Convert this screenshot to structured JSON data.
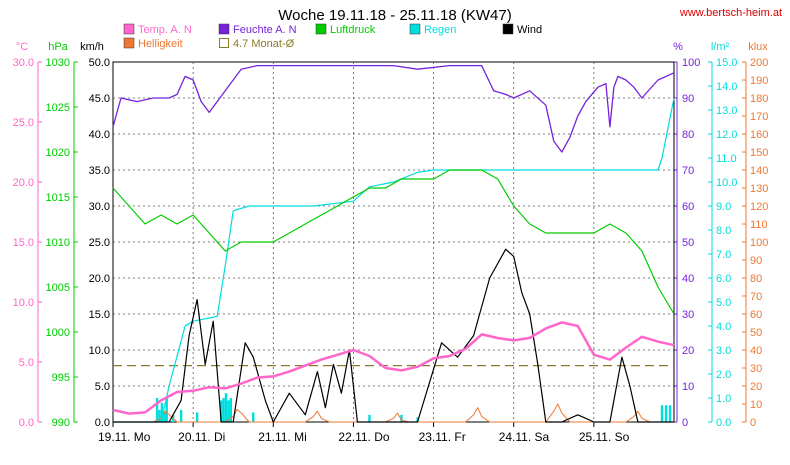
{
  "header": {
    "title": "Woche 19.11.18 - 25.11.18 (KW47)",
    "website": "www.bertsch-heim.at"
  },
  "colors": {
    "temp": "#ff66cc",
    "humidity": "#7722dd",
    "pressure": "#00cc00",
    "rain": "#00dddd",
    "wind": "#000000",
    "brightness": "#ee7733",
    "monthly_avg": "#8a7a2a",
    "grid": "#555555",
    "website": "#dd0000"
  },
  "legend": [
    {
      "key": "temp",
      "label": "Temp. A. N",
      "style": "fill"
    },
    {
      "key": "humidity",
      "label": "Feuchte A. N",
      "style": "fill"
    },
    {
      "key": "pressure",
      "label": "Luftdruck",
      "style": "fill"
    },
    {
      "key": "rain",
      "label": "Regen",
      "style": "fill"
    },
    {
      "key": "wind",
      "label": "Wind",
      "style": "fill"
    },
    {
      "key": "brightness",
      "label": "Helligkeit",
      "style": "fill"
    },
    {
      "key": "monthly_avg",
      "label": "4.7 Monat-Ø",
      "style": "outline"
    }
  ],
  "axes": {
    "temp": {
      "unit": "°C",
      "ticks": [
        "0.0",
        "5.0",
        "10.0",
        "15.0",
        "20.0",
        "25.0",
        "30.0"
      ]
    },
    "pressure": {
      "unit": "hPa",
      "ticks": [
        "990",
        "995",
        "1000",
        "1005",
        "1010",
        "1015",
        "1020",
        "1025",
        "1030"
      ]
    },
    "wind": {
      "unit": "km/h",
      "ticks": [
        "0.0",
        "5.0",
        "10.0",
        "15.0",
        "20.0",
        "25.0",
        "30.0",
        "35.0",
        "40.0",
        "45.0",
        "50.0"
      ]
    },
    "humidity": {
      "unit": "%",
      "ticks": [
        "0",
        "10",
        "20",
        "30",
        "40",
        "50",
        "60",
        "70",
        "80",
        "90",
        "100"
      ]
    },
    "rain": {
      "unit": "l/m²",
      "ticks": [
        "0.0",
        "1.0",
        "2.0",
        "3.0",
        "4.0",
        "5.0",
        "6.0",
        "7.0",
        "8.0",
        "9.0",
        "10.0",
        "11.0",
        "12.0",
        "13.0",
        "14.0",
        "15.0"
      ]
    },
    "brightness": {
      "unit": "klux",
      "ticks": [
        "0",
        "10",
        "20",
        "30",
        "40",
        "50",
        "60",
        "70",
        "80",
        "90",
        "100",
        "110",
        "120",
        "130",
        "140",
        "150",
        "160",
        "170",
        "180",
        "190",
        "200"
      ]
    },
    "days": [
      "19.11. Mo",
      "20.11. Di",
      "21.11. Mi",
      "22.11. Do",
      "23.11. Fr",
      "24.11. Sa",
      "25.11. So"
    ]
  },
  "chart_data": {
    "type": "line",
    "title": "Woche 19.11.18 - 25.11.18 (KW47)",
    "x_unit": "days since 19.11.18 00:00",
    "xlim": [
      0,
      7
    ],
    "grid": true,
    "legend_position": "top",
    "monthly_avg_temp": 4.7,
    "series": [
      {
        "name": "Temp. A. N",
        "key": "temp",
        "unit": "°C",
        "ylim": [
          0,
          30
        ],
        "points": [
          [
            0,
            1.0
          ],
          [
            0.2,
            0.7
          ],
          [
            0.4,
            0.8
          ],
          [
            0.6,
            1.8
          ],
          [
            0.8,
            2.5
          ],
          [
            1.0,
            2.6
          ],
          [
            1.2,
            2.9
          ],
          [
            1.4,
            2.8
          ],
          [
            1.6,
            3.2
          ],
          [
            1.8,
            3.7
          ],
          [
            2.0,
            3.8
          ],
          [
            2.2,
            4.2
          ],
          [
            2.4,
            4.7
          ],
          [
            2.6,
            5.2
          ],
          [
            2.8,
            5.6
          ],
          [
            3.0,
            6.0
          ],
          [
            3.2,
            5.5
          ],
          [
            3.4,
            4.5
          ],
          [
            3.6,
            4.3
          ],
          [
            3.8,
            4.6
          ],
          [
            4.0,
            5.3
          ],
          [
            4.2,
            5.5
          ],
          [
            4.4,
            6.1
          ],
          [
            4.6,
            7.3
          ],
          [
            4.8,
            7.0
          ],
          [
            5.0,
            6.8
          ],
          [
            5.2,
            7.0
          ],
          [
            5.4,
            7.8
          ],
          [
            5.6,
            8.3
          ],
          [
            5.8,
            8.0
          ],
          [
            6.0,
            5.6
          ],
          [
            6.2,
            5.2
          ],
          [
            6.4,
            6.2
          ],
          [
            6.6,
            7.1
          ],
          [
            6.8,
            6.7
          ],
          [
            7.0,
            6.4
          ]
        ]
      },
      {
        "name": "Feuchte A. N",
        "key": "humidity",
        "unit": "%",
        "ylim": [
          0,
          100
        ],
        "points": [
          [
            0,
            82
          ],
          [
            0.1,
            90
          ],
          [
            0.3,
            89
          ],
          [
            0.5,
            90
          ],
          [
            0.7,
            90
          ],
          [
            0.8,
            91
          ],
          [
            0.9,
            96
          ],
          [
            1.0,
            95
          ],
          [
            1.1,
            89
          ],
          [
            1.2,
            86
          ],
          [
            1.4,
            92
          ],
          [
            1.6,
            98
          ],
          [
            1.8,
            99
          ],
          [
            2.0,
            99
          ],
          [
            2.5,
            99
          ],
          [
            3.0,
            99
          ],
          [
            3.5,
            99
          ],
          [
            3.8,
            98
          ],
          [
            4.2,
            99
          ],
          [
            4.6,
            99
          ],
          [
            4.75,
            92
          ],
          [
            4.9,
            91
          ],
          [
            5.0,
            90
          ],
          [
            5.2,
            92
          ],
          [
            5.4,
            88
          ],
          [
            5.5,
            78
          ],
          [
            5.6,
            75
          ],
          [
            5.7,
            79
          ],
          [
            5.8,
            85
          ],
          [
            5.9,
            89
          ],
          [
            6.05,
            93
          ],
          [
            6.15,
            94
          ],
          [
            6.2,
            82
          ],
          [
            6.25,
            93
          ],
          [
            6.3,
            96
          ],
          [
            6.4,
            95
          ],
          [
            6.5,
            93
          ],
          [
            6.6,
            90
          ],
          [
            6.8,
            95
          ],
          [
            7.0,
            97
          ]
        ]
      },
      {
        "name": "Luftdruck",
        "key": "pressure",
        "unit": "hPa",
        "ylim": [
          990,
          1030
        ],
        "points": [
          [
            0,
            1016
          ],
          [
            0.2,
            1014
          ],
          [
            0.4,
            1012
          ],
          [
            0.6,
            1013
          ],
          [
            0.8,
            1012
          ],
          [
            1.0,
            1013
          ],
          [
            1.2,
            1011
          ],
          [
            1.4,
            1009
          ],
          [
            1.6,
            1010
          ],
          [
            1.8,
            1010
          ],
          [
            2.0,
            1010
          ],
          [
            2.2,
            1011
          ],
          [
            2.4,
            1012
          ],
          [
            2.6,
            1013
          ],
          [
            2.8,
            1014
          ],
          [
            3.0,
            1015
          ],
          [
            3.2,
            1016
          ],
          [
            3.4,
            1016
          ],
          [
            3.6,
            1017
          ],
          [
            3.8,
            1017
          ],
          [
            4.0,
            1017
          ],
          [
            4.2,
            1018
          ],
          [
            4.4,
            1018
          ],
          [
            4.6,
            1018
          ],
          [
            4.8,
            1017
          ],
          [
            5.0,
            1014
          ],
          [
            5.2,
            1012
          ],
          [
            5.4,
            1011
          ],
          [
            5.6,
            1011
          ],
          [
            5.8,
            1011
          ],
          [
            6.0,
            1011
          ],
          [
            6.2,
            1012
          ],
          [
            6.4,
            1011
          ],
          [
            6.6,
            1009
          ],
          [
            6.8,
            1005
          ],
          [
            7.0,
            1002
          ]
        ]
      },
      {
        "name": "Regen",
        "key": "rain",
        "unit": "l/m²",
        "ylim": [
          0,
          15
        ],
        "points": [
          [
            0,
            0
          ],
          [
            0.6,
            0
          ],
          [
            0.7,
            1.5
          ],
          [
            0.9,
            4.0
          ],
          [
            1.0,
            4.2
          ],
          [
            1.3,
            4.4
          ],
          [
            1.4,
            6.5
          ],
          [
            1.5,
            8.8
          ],
          [
            1.7,
            9.0
          ],
          [
            2.0,
            9.0
          ],
          [
            2.5,
            9.0
          ],
          [
            3.0,
            9.2
          ],
          [
            3.2,
            9.8
          ],
          [
            3.5,
            10.0
          ],
          [
            3.8,
            10.4
          ],
          [
            4.0,
            10.5
          ],
          [
            4.5,
            10.5
          ],
          [
            5.0,
            10.5
          ],
          [
            5.5,
            10.5
          ],
          [
            6.0,
            10.5
          ],
          [
            6.8,
            10.5
          ],
          [
            6.85,
            11.0
          ],
          [
            7.0,
            13.5
          ]
        ]
      },
      {
        "name": "Wind",
        "key": "wind",
        "unit": "km/h",
        "ylim": [
          0,
          50
        ],
        "points": [
          [
            0,
            0
          ],
          [
            0.7,
            0
          ],
          [
            0.85,
            3
          ],
          [
            0.95,
            12
          ],
          [
            1.05,
            17
          ],
          [
            1.15,
            8
          ],
          [
            1.25,
            14
          ],
          [
            1.35,
            0
          ],
          [
            1.5,
            0
          ],
          [
            1.65,
            11
          ],
          [
            1.75,
            9
          ],
          [
            1.9,
            3
          ],
          [
            2.0,
            0
          ],
          [
            2.2,
            4
          ],
          [
            2.4,
            1
          ],
          [
            2.55,
            7
          ],
          [
            2.65,
            2
          ],
          [
            2.75,
            8
          ],
          [
            2.85,
            4
          ],
          [
            2.95,
            10
          ],
          [
            3.05,
            0
          ],
          [
            3.4,
            0
          ],
          [
            3.8,
            0
          ],
          [
            4.1,
            11
          ],
          [
            4.3,
            9
          ],
          [
            4.5,
            12
          ],
          [
            4.7,
            20
          ],
          [
            4.9,
            24
          ],
          [
            5.0,
            23
          ],
          [
            5.1,
            18
          ],
          [
            5.2,
            15
          ],
          [
            5.3,
            8
          ],
          [
            5.4,
            0
          ],
          [
            5.6,
            0
          ],
          [
            5.8,
            1
          ],
          [
            6.0,
            0
          ],
          [
            6.2,
            0
          ],
          [
            6.35,
            9
          ],
          [
            6.45,
            5
          ],
          [
            6.55,
            0
          ],
          [
            7.0,
            0
          ]
        ]
      },
      {
        "name": "Helligkeit",
        "key": "brightness",
        "unit": "klux",
        "ylim": [
          0,
          200
        ],
        "points": [
          [
            0,
            0
          ],
          [
            0.5,
            0
          ],
          [
            0.6,
            2
          ],
          [
            0.65,
            6
          ],
          [
            0.7,
            4
          ],
          [
            0.8,
            0
          ],
          [
            1.4,
            0
          ],
          [
            1.5,
            3
          ],
          [
            1.55,
            7
          ],
          [
            1.6,
            5
          ],
          [
            1.7,
            0
          ],
          [
            2.4,
            0
          ],
          [
            2.5,
            3
          ],
          [
            2.55,
            6
          ],
          [
            2.6,
            2
          ],
          [
            2.7,
            0
          ],
          [
            3.4,
            0
          ],
          [
            3.5,
            2
          ],
          [
            3.55,
            5
          ],
          [
            3.6,
            1
          ],
          [
            3.7,
            0
          ],
          [
            4.4,
            0
          ],
          [
            4.5,
            4
          ],
          [
            4.55,
            8
          ],
          [
            4.6,
            3
          ],
          [
            4.7,
            0
          ],
          [
            5.4,
            0
          ],
          [
            5.5,
            6
          ],
          [
            5.55,
            10
          ],
          [
            5.6,
            5
          ],
          [
            5.7,
            0
          ],
          [
            6.4,
            0
          ],
          [
            6.5,
            3
          ],
          [
            6.55,
            6
          ],
          [
            6.6,
            2
          ],
          [
            6.7,
            0
          ],
          [
            7.0,
            0
          ]
        ]
      }
    ],
    "rain_bars": [
      {
        "x": 0.55,
        "v": 1.0
      },
      {
        "x": 0.58,
        "v": 0.5
      },
      {
        "x": 0.61,
        "v": 0.8
      },
      {
        "x": 0.64,
        "v": 0.4
      },
      {
        "x": 0.67,
        "v": 1.0
      },
      {
        "x": 0.75,
        "v": 0.3
      },
      {
        "x": 0.85,
        "v": 0.5
      },
      {
        "x": 1.05,
        "v": 0.4
      },
      {
        "x": 1.35,
        "v": 0.9
      },
      {
        "x": 1.38,
        "v": 1.0
      },
      {
        "x": 1.41,
        "v": 1.2
      },
      {
        "x": 1.44,
        "v": 0.9
      },
      {
        "x": 1.47,
        "v": 1.0
      },
      {
        "x": 1.75,
        "v": 0.4
      },
      {
        "x": 3.2,
        "v": 0.3
      },
      {
        "x": 3.6,
        "v": 0.3
      },
      {
        "x": 3.8,
        "v": 0.2
      },
      {
        "x": 6.85,
        "v": 0.7
      },
      {
        "x": 6.9,
        "v": 0.7
      },
      {
        "x": 6.95,
        "v": 0.7
      }
    ]
  }
}
